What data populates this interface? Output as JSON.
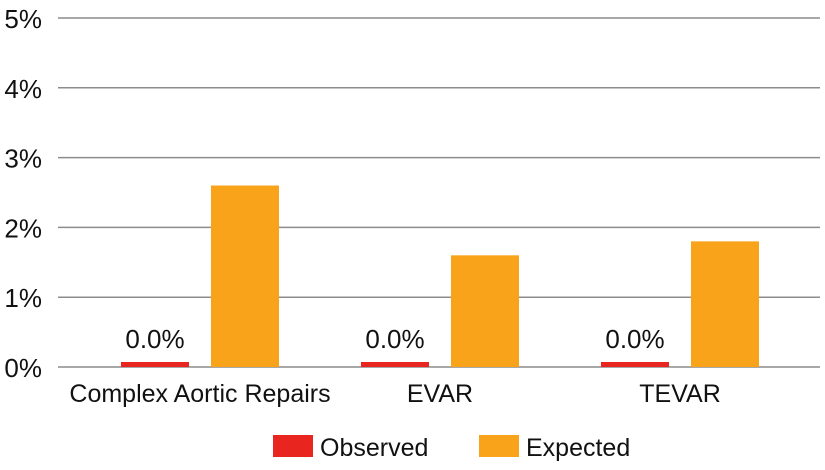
{
  "chart_data": {
    "type": "bar",
    "categories": [
      "Complex Aortic Repairs",
      "EVAR",
      "TEVAR"
    ],
    "series": [
      {
        "name": "Observed",
        "values": [
          0.0,
          0.0,
          0.0
        ],
        "color": "#e8251f",
        "labels": [
          "0.0%",
          "0.0%",
          "0.0%"
        ]
      },
      {
        "name": "Expected",
        "values": [
          2.6,
          1.6,
          1.8
        ],
        "color": "#f9a31b"
      }
    ],
    "yticks": [
      "0%",
      "1%",
      "2%",
      "3%",
      "4%",
      "5%"
    ],
    "ylim": [
      0,
      5
    ],
    "grid": true,
    "legend_position": "bottom-center"
  }
}
